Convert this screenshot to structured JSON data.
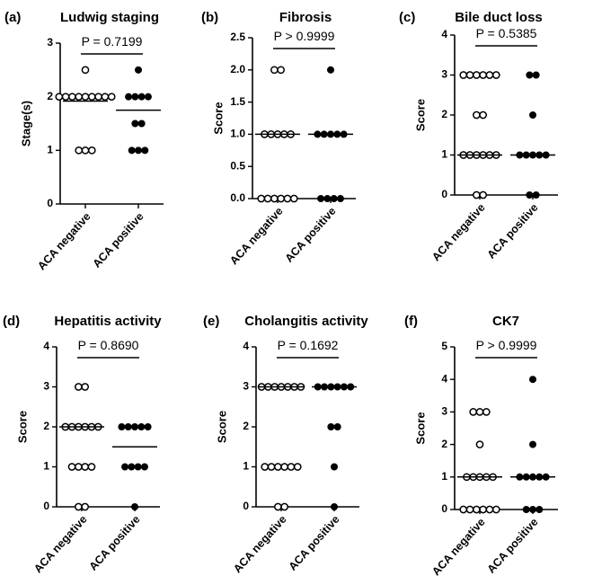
{
  "chart_data": [
    {
      "type": "scatter",
      "letter": "(a)",
      "title": "Ludwig staging",
      "ylabel": "Stage(s)",
      "ylim": [
        0,
        3
      ],
      "yticks": [
        "0",
        "1",
        "2",
        "3"
      ],
      "categories": [
        "ACA negative",
        "ACA positive"
      ],
      "pvalue": "P = 0.7199",
      "series": [
        {
          "marker": "open",
          "values": [
            2.5,
            2,
            2,
            2,
            2,
            2,
            2,
            2,
            2,
            2,
            1,
            1,
            1
          ],
          "mean": 1.92
        },
        {
          "marker": "filled",
          "values": [
            2.5,
            2,
            2,
            2,
            2,
            1.5,
            1.5,
            1,
            1,
            1
          ],
          "mean": 1.75
        }
      ]
    },
    {
      "type": "scatter",
      "letter": "(b)",
      "title": "Fibrosis",
      "ylabel": "Score",
      "ylim": [
        0,
        2.5
      ],
      "yticks": [
        "0.0",
        "0.5",
        "1.0",
        "1.5",
        "2.0",
        "2.5"
      ],
      "categories": [
        "ACA negative",
        "ACA positive"
      ],
      "pvalue": "P > 0.9999",
      "series": [
        {
          "marker": "open",
          "values": [
            2,
            2,
            1,
            1,
            1,
            1,
            1,
            0,
            0,
            0,
            0,
            0,
            0
          ],
          "mean": 1
        },
        {
          "marker": "filled",
          "values": [
            2,
            1,
            1,
            1,
            1,
            1,
            0,
            0,
            0,
            0
          ],
          "mean": 1
        }
      ]
    },
    {
      "type": "scatter",
      "letter": "(c)",
      "title": "Bile duct loss",
      "ylabel": "Score",
      "ylim": [
        0,
        4
      ],
      "yticks": [
        "0",
        "1",
        "2",
        "3",
        "4"
      ],
      "categories": [
        "ACA negative",
        "ACA positive"
      ],
      "pvalue": "P = 0.5385",
      "series": [
        {
          "marker": "open",
          "values": [
            3,
            3,
            3,
            3,
            3,
            3,
            2,
            2,
            1,
            1,
            1,
            1,
            1,
            1,
            0,
            0
          ],
          "mean": 1
        },
        {
          "marker": "filled",
          "values": [
            3,
            3,
            2,
            1,
            1,
            1,
            1,
            1,
            0,
            0
          ],
          "mean": 1
        }
      ]
    },
    {
      "type": "scatter",
      "letter": "(d)",
      "title": "Hepatitis activity",
      "ylabel": "Score",
      "ylim": [
        0,
        4
      ],
      "yticks": [
        "0",
        "1",
        "2",
        "3",
        "4"
      ],
      "categories": [
        "ACA negative",
        "ACA positive"
      ],
      "pvalue": "P = 0.8690",
      "series": [
        {
          "marker": "open",
          "values": [
            3,
            3,
            2,
            2,
            2,
            2,
            2,
            2,
            1,
            1,
            1,
            1,
            0,
            0
          ],
          "mean": 2
        },
        {
          "marker": "filled",
          "values": [
            2,
            2,
            2,
            2,
            2,
            1,
            1,
            1,
            1,
            0
          ],
          "mean": 1.5
        }
      ]
    },
    {
      "type": "scatter",
      "letter": "(e)",
      "title": "Cholangitis activity",
      "ylabel": "Score",
      "ylim": [
        0,
        4
      ],
      "yticks": [
        "0",
        "1",
        "2",
        "3",
        "4"
      ],
      "categories": [
        "ACA negative",
        "ACA positive"
      ],
      "pvalue": "P = 0.1692",
      "series": [
        {
          "marker": "open",
          "values": [
            3,
            3,
            3,
            3,
            3,
            3,
            3,
            1,
            1,
            1,
            1,
            1,
            1,
            0,
            0
          ],
          "mean": 3
        },
        {
          "marker": "filled",
          "values": [
            3,
            3,
            3,
            3,
            3,
            3,
            2,
            2,
            1,
            0
          ],
          "mean": 3
        }
      ]
    },
    {
      "type": "scatter",
      "letter": "(f)",
      "title": "CK7",
      "ylabel": "Score",
      "ylim": [
        0,
        5
      ],
      "yticks": [
        "0",
        "1",
        "2",
        "3",
        "4",
        "5"
      ],
      "categories": [
        "ACA negative",
        "ACA positive"
      ],
      "pvalue": "P > 0.9999",
      "series": [
        {
          "marker": "open",
          "values": [
            3,
            3,
            3,
            2,
            1,
            1,
            1,
            1,
            1,
            0,
            0,
            0,
            0,
            0,
            0
          ],
          "mean": 1
        },
        {
          "marker": "filled",
          "values": [
            4,
            2,
            1,
            1,
            1,
            1,
            1,
            0,
            0,
            0
          ],
          "mean": 1
        }
      ]
    }
  ]
}
